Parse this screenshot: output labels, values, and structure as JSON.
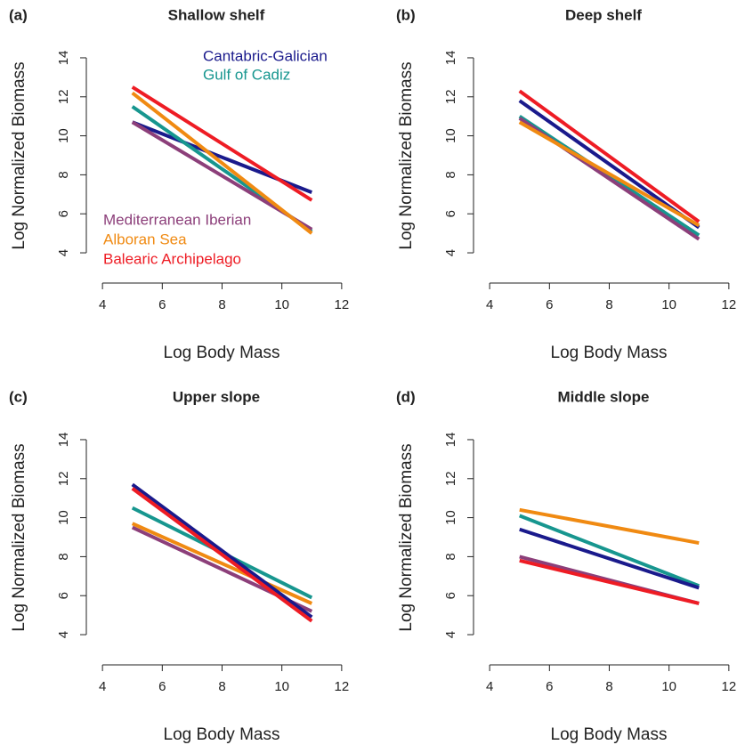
{
  "chart_data": [
    {
      "type": "line",
      "label": "(a)",
      "title": "Shallow shelf",
      "x_label": "Log Body Mass",
      "y_label": "Log Normalized Biomass",
      "x": [
        5,
        11
      ],
      "xlim": [
        3.46,
        12.54
      ],
      "ylim": [
        2.45,
        15.55
      ],
      "xticks": [
        4,
        6,
        8,
        10,
        12
      ],
      "yticks": [
        4,
        6,
        8,
        10,
        12,
        14
      ],
      "legend": true,
      "series": [
        {
          "name": "Cantabric-Galician",
          "color": "#1a1a8c",
          "values": [
            10.7,
            7.1
          ]
        },
        {
          "name": "Gulf of Cadiz",
          "color": "#17968f",
          "values": [
            11.5,
            5.1
          ]
        },
        {
          "name": "Mediterranean Iberian",
          "color": "#8c3f7a",
          "values": [
            10.7,
            5.2
          ]
        },
        {
          "name": "Alboran Sea",
          "color": "#f08a12",
          "values": [
            12.2,
            5.0
          ]
        },
        {
          "name": "Balearic Archipelago",
          "color": "#ee1c24",
          "values": [
            12.5,
            6.7
          ]
        }
      ]
    },
    {
      "type": "line",
      "label": "(b)",
      "title": "Deep shelf",
      "x_label": "Log Body Mass",
      "y_label": "Log Normalized Biomass",
      "x": [
        5,
        11
      ],
      "xlim": [
        3.46,
        12.54
      ],
      "ylim": [
        2.45,
        15.55
      ],
      "xticks": [
        4,
        6,
        8,
        10,
        12
      ],
      "yticks": [
        4,
        6,
        8,
        10,
        12,
        14
      ],
      "legend": false,
      "series": [
        {
          "color": "#1a1a8c",
          "values": [
            11.8,
            5.3
          ]
        },
        {
          "color": "#17968f",
          "values": [
            11.0,
            4.9
          ]
        },
        {
          "color": "#8c3f7a",
          "values": [
            10.9,
            4.7
          ]
        },
        {
          "color": "#f08a12",
          "values": [
            10.7,
            5.4
          ]
        },
        {
          "color": "#ee1c24",
          "values": [
            12.3,
            5.6
          ]
        }
      ]
    },
    {
      "type": "line",
      "label": "(c)",
      "title": "Upper slope",
      "x_label": "Log Body Mass",
      "y_label": "Log Normalized Biomass",
      "x": [
        5,
        11
      ],
      "xlim": [
        3.46,
        12.54
      ],
      "ylim": [
        2.45,
        15.55
      ],
      "xticks": [
        4,
        6,
        8,
        10,
        12
      ],
      "yticks": [
        4,
        6,
        8,
        10,
        12,
        14
      ],
      "legend": false,
      "series": [
        {
          "color": "#17968f",
          "values": [
            10.5,
            5.9
          ]
        },
        {
          "color": "#8c3f7a",
          "values": [
            9.5,
            5.2
          ]
        },
        {
          "color": "#f08a12",
          "values": [
            9.7,
            5.6
          ]
        },
        {
          "color": "#1a1a8c",
          "values": [
            11.7,
            4.9
          ]
        },
        {
          "color": "#ee1c24",
          "values": [
            11.5,
            4.7
          ]
        }
      ]
    },
    {
      "type": "line",
      "label": "(d)",
      "title": "Middle slope",
      "x_label": "Log Body Mass",
      "y_label": "Log Normalized Biomass",
      "x": [
        5,
        11
      ],
      "xlim": [
        3.46,
        12.54
      ],
      "ylim": [
        2.45,
        15.55
      ],
      "xticks": [
        4,
        6,
        8,
        10,
        12
      ],
      "yticks": [
        4,
        6,
        8,
        10,
        12,
        14
      ],
      "legend": false,
      "series": [
        {
          "color": "#f08a12",
          "values": [
            10.4,
            8.7
          ]
        },
        {
          "color": "#17968f",
          "values": [
            10.1,
            6.5
          ]
        },
        {
          "color": "#1a1a8c",
          "values": [
            9.4,
            6.4
          ]
        },
        {
          "color": "#8c3f7a",
          "values": [
            8.0,
            5.6
          ]
        },
        {
          "color": "#ee1c24",
          "values": [
            7.8,
            5.6
          ]
        }
      ]
    }
  ]
}
